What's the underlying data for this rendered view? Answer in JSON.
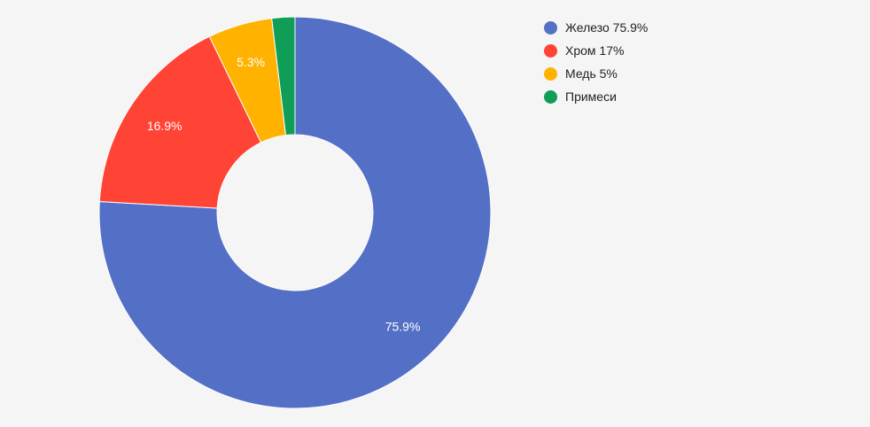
{
  "chart_data": {
    "type": "pie",
    "style": "donut",
    "title": "",
    "categories": [
      "Железо",
      "Хром",
      "Медь",
      "Примеси"
    ],
    "values": [
      75.9,
      16.9,
      5.3,
      1.9
    ],
    "slice_labels": [
      "75.9%",
      "16.9%",
      "5.3%",
      ""
    ],
    "colors": [
      "#5470c6",
      "#ff4334",
      "#ffb300",
      "#0f9d58"
    ],
    "legend": {
      "placement": "top-right",
      "entries": [
        "Железо 75.9%",
        "Хром 17%",
        "Медь 5%",
        "Примеси"
      ]
    }
  }
}
